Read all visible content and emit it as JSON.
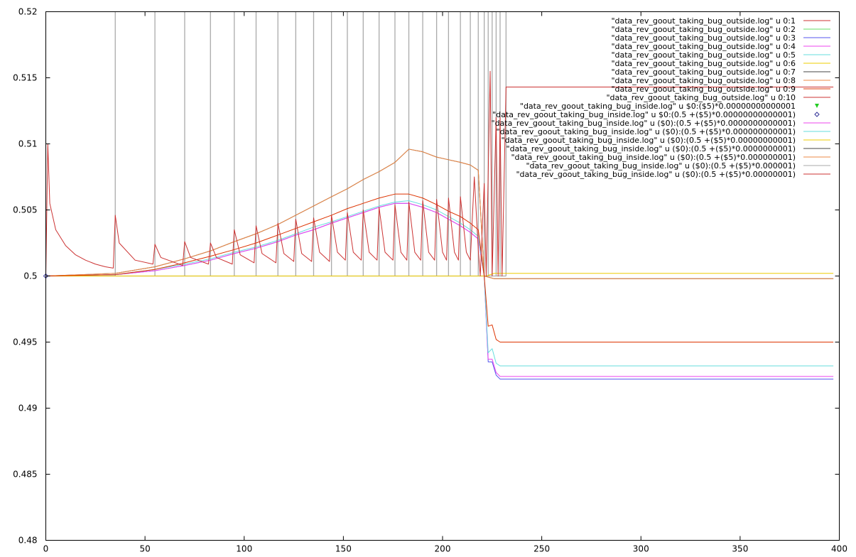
{
  "chart_data": {
    "type": "line",
    "title": "",
    "xlabel": "",
    "ylabel": "",
    "xlim": [
      0,
      400
    ],
    "ylim": [
      0.48,
      0.52
    ],
    "x_ticks": [
      "0",
      "50",
      "100",
      "150",
      "200",
      "250",
      "300",
      "350",
      "400"
    ],
    "y_ticks": [
      "0.48",
      "0.485",
      "0.49",
      "0.495",
      "0.5",
      "0.505",
      "0.51",
      "0.515",
      "0.52"
    ],
    "grid": false,
    "legend_position": "top-right",
    "spike_x": [
      35,
      55,
      70,
      83,
      95,
      106,
      117,
      126,
      135,
      144,
      152,
      160,
      168,
      176,
      183,
      190,
      197,
      203,
      209,
      214,
      218,
      221,
      223,
      225,
      227,
      229,
      232
    ],
    "series": [
      {
        "name": "\"data_rev_goout_taking_bug_outside.log\" u 0:1",
        "color": "#cc3333",
        "style": "line"
      },
      {
        "name": "\"data_rev_goout_taking_bug_outside.log\" u 0:2",
        "color": "#66dd66",
        "style": "line"
      },
      {
        "name": "\"data_rev_goout_taking_bug_outside.log\" u 0:3",
        "color": "#5555ee",
        "style": "line",
        "values": [
          [
            0,
            0.5
          ],
          [
            35,
            0.5001
          ],
          [
            55,
            0.5004
          ],
          [
            70,
            0.5008
          ],
          [
            83,
            0.5012
          ],
          [
            95,
            0.5017
          ],
          [
            106,
            0.5021
          ],
          [
            117,
            0.5026
          ],
          [
            126,
            0.5031
          ],
          [
            135,
            0.5035
          ],
          [
            144,
            0.504
          ],
          [
            152,
            0.5044
          ],
          [
            160,
            0.5048
          ],
          [
            168,
            0.5052
          ],
          [
            176,
            0.5055
          ],
          [
            183,
            0.5055
          ],
          [
            190,
            0.5052
          ],
          [
            197,
            0.5048
          ],
          [
            203,
            0.5043
          ],
          [
            209,
            0.5038
          ],
          [
            214,
            0.5033
          ],
          [
            218,
            0.5028
          ],
          [
            221,
            0.5
          ],
          [
            223,
            0.4935
          ],
          [
            225,
            0.4935
          ],
          [
            227,
            0.4925
          ],
          [
            229,
            0.4922
          ],
          [
            232,
            0.4922
          ],
          [
            300,
            0.4922
          ],
          [
            397,
            0.4922
          ]
        ]
      },
      {
        "name": "\"data_rev_goout_taking_bug_outside.log\" u 0:4",
        "color": "#ee44ee",
        "style": "line",
        "values": [
          [
            0,
            0.5
          ],
          [
            35,
            0.5001
          ],
          [
            55,
            0.5004
          ],
          [
            70,
            0.5008
          ],
          [
            83,
            0.5012
          ],
          [
            95,
            0.5017
          ],
          [
            106,
            0.5021
          ],
          [
            117,
            0.5026
          ],
          [
            126,
            0.5031
          ],
          [
            135,
            0.5035
          ],
          [
            144,
            0.504
          ],
          [
            152,
            0.5044
          ],
          [
            160,
            0.5048
          ],
          [
            168,
            0.5052
          ],
          [
            176,
            0.5055
          ],
          [
            183,
            0.5055
          ],
          [
            190,
            0.5052
          ],
          [
            197,
            0.5048
          ],
          [
            203,
            0.5043
          ],
          [
            209,
            0.5038
          ],
          [
            214,
            0.5033
          ],
          [
            218,
            0.5028
          ],
          [
            221,
            0.5
          ],
          [
            223,
            0.4937
          ],
          [
            225,
            0.4937
          ],
          [
            227,
            0.4927
          ],
          [
            229,
            0.4924
          ],
          [
            232,
            0.4924
          ],
          [
            300,
            0.4924
          ],
          [
            397,
            0.4924
          ]
        ]
      },
      {
        "name": "\"data_rev_goout_taking_bug_outside.log\" u 0:5",
        "color": "#66dddd",
        "style": "line",
        "values": [
          [
            0,
            0.5
          ],
          [
            35,
            0.5001
          ],
          [
            55,
            0.5005
          ],
          [
            70,
            0.5009
          ],
          [
            83,
            0.5013
          ],
          [
            95,
            0.5018
          ],
          [
            106,
            0.5022
          ],
          [
            117,
            0.5027
          ],
          [
            126,
            0.5032
          ],
          [
            135,
            0.5037
          ],
          [
            144,
            0.5041
          ],
          [
            152,
            0.5045
          ],
          [
            160,
            0.5049
          ],
          [
            168,
            0.5053
          ],
          [
            176,
            0.5056
          ],
          [
            183,
            0.5057
          ],
          [
            190,
            0.5054
          ],
          [
            197,
            0.505
          ],
          [
            203,
            0.5045
          ],
          [
            209,
            0.504
          ],
          [
            214,
            0.5035
          ],
          [
            218,
            0.503
          ],
          [
            221,
            0.5
          ],
          [
            223,
            0.4942
          ],
          [
            225,
            0.4945
          ],
          [
            227,
            0.4934
          ],
          [
            229,
            0.4932
          ],
          [
            232,
            0.4932
          ],
          [
            300,
            0.4932
          ],
          [
            397,
            0.4932
          ]
        ]
      },
      {
        "name": "\"data_rev_goout_taking_bug_outside.log\" u 0:6",
        "color": "#eecc00",
        "style": "line",
        "values": [
          [
            0,
            0.5
          ],
          [
            222,
            0.5
          ],
          [
            226,
            0.5002
          ],
          [
            232,
            0.5002
          ],
          [
            397,
            0.5002
          ]
        ]
      },
      {
        "name": "\"data_rev_goout_taking_bug_outside.log\" u 0:7",
        "color": "#444444",
        "style": "line",
        "values": [
          [
            0,
            0.5
          ],
          [
            35,
            0.5002
          ],
          [
            55,
            0.5007
          ],
          [
            70,
            0.5013
          ],
          [
            83,
            0.5019
          ],
          [
            95,
            0.5026
          ],
          [
            106,
            0.5032
          ],
          [
            117,
            0.5039
          ],
          [
            126,
            0.5046
          ],
          [
            135,
            0.5053
          ],
          [
            144,
            0.506
          ],
          [
            152,
            0.5066
          ],
          [
            160,
            0.5073
          ],
          [
            168,
            0.5079
          ],
          [
            176,
            0.5086
          ],
          [
            183,
            0.5096
          ],
          [
            190,
            0.5094
          ],
          [
            197,
            0.509
          ],
          [
            203,
            0.5088
          ],
          [
            209,
            0.5086
          ],
          [
            214,
            0.5084
          ],
          [
            218,
            0.508
          ],
          [
            221,
            0.5
          ],
          [
            226,
            0.4998
          ],
          [
            232,
            0.4998
          ],
          [
            397,
            0.4998
          ]
        ]
      },
      {
        "name": "\"data_rev_goout_taking_bug_outside.log\" u 0:8",
        "color": "#ee8844",
        "style": "line",
        "values": [
          [
            0,
            0.5
          ],
          [
            35,
            0.5002
          ],
          [
            55,
            0.5007
          ],
          [
            70,
            0.5013
          ],
          [
            83,
            0.5019
          ],
          [
            95,
            0.5026
          ],
          [
            106,
            0.5032
          ],
          [
            117,
            0.5039
          ],
          [
            126,
            0.5046
          ],
          [
            135,
            0.5053
          ],
          [
            144,
            0.506
          ],
          [
            152,
            0.5066
          ],
          [
            160,
            0.5073
          ],
          [
            168,
            0.5079
          ],
          [
            176,
            0.5086
          ],
          [
            183,
            0.5096
          ],
          [
            190,
            0.5094
          ],
          [
            197,
            0.509
          ],
          [
            203,
            0.5088
          ],
          [
            209,
            0.5086
          ],
          [
            214,
            0.5084
          ],
          [
            218,
            0.508
          ],
          [
            221,
            0.5
          ],
          [
            226,
            0.4998
          ],
          [
            232,
            0.4998
          ],
          [
            397,
            0.4998
          ]
        ]
      },
      {
        "name": "\"data_rev_goout_taking_bug_outside.log\" u 0:9",
        "color": "#dd3300",
        "style": "line",
        "values": [
          [
            0,
            0.5
          ],
          [
            35,
            0.5001
          ],
          [
            55,
            0.5005
          ],
          [
            70,
            0.501
          ],
          [
            83,
            0.5015
          ],
          [
            95,
            0.502
          ],
          [
            106,
            0.5025
          ],
          [
            117,
            0.5031
          ],
          [
            126,
            0.5036
          ],
          [
            135,
            0.5041
          ],
          [
            144,
            0.5046
          ],
          [
            152,
            0.5051
          ],
          [
            160,
            0.5055
          ],
          [
            168,
            0.5059
          ],
          [
            176,
            0.5062
          ],
          [
            183,
            0.5062
          ],
          [
            190,
            0.5059
          ],
          [
            197,
            0.5054
          ],
          [
            203,
            0.5049
          ],
          [
            209,
            0.5045
          ],
          [
            214,
            0.504
          ],
          [
            218,
            0.5035
          ],
          [
            221,
            0.5
          ],
          [
            223,
            0.4962
          ],
          [
            225,
            0.4963
          ],
          [
            227,
            0.4952
          ],
          [
            229,
            0.495
          ],
          [
            232,
            0.495
          ],
          [
            300,
            0.495
          ],
          [
            397,
            0.495
          ]
        ]
      },
      {
        "name": "\"data_rev_goout_taking_bug_outside.log\" u 0:10",
        "color": "#cc3333",
        "style": "line",
        "values": [
          [
            0,
            0.5
          ],
          [
            1,
            0.51
          ],
          [
            2,
            0.5055
          ],
          [
            5,
            0.5035
          ],
          [
            10,
            0.5023
          ],
          [
            15,
            0.5016
          ],
          [
            20,
            0.5012
          ],
          [
            25,
            0.5009
          ],
          [
            30,
            0.5007
          ],
          [
            34,
            0.5006
          ],
          [
            35,
            0.5046
          ],
          [
            37,
            0.5025
          ],
          [
            45,
            0.5012
          ],
          [
            54,
            0.5009
          ],
          [
            55,
            0.5024
          ],
          [
            58,
            0.5014
          ],
          [
            69,
            0.5008
          ],
          [
            70,
            0.5026
          ],
          [
            73,
            0.5014
          ],
          [
            82,
            0.5009
          ],
          [
            83,
            0.5025
          ],
          [
            86,
            0.5014
          ],
          [
            94,
            0.5009
          ],
          [
            95,
            0.5035
          ],
          [
            98,
            0.5016
          ],
          [
            105,
            0.501
          ],
          [
            106,
            0.5038
          ],
          [
            109,
            0.5017
          ],
          [
            116,
            0.501
          ],
          [
            117,
            0.504
          ],
          [
            120,
            0.5017
          ],
          [
            125,
            0.5011
          ],
          [
            126,
            0.5043
          ],
          [
            129,
            0.5017
          ],
          [
            134,
            0.5011
          ],
          [
            135,
            0.5044
          ],
          [
            138,
            0.5018
          ],
          [
            143,
            0.5011
          ],
          [
            144,
            0.5046
          ],
          [
            147,
            0.5018
          ],
          [
            151,
            0.5012
          ],
          [
            152,
            0.5048
          ],
          [
            155,
            0.5018
          ],
          [
            159,
            0.5012
          ],
          [
            160,
            0.505
          ],
          [
            163,
            0.5018
          ],
          [
            167,
            0.5012
          ],
          [
            168,
            0.5052
          ],
          [
            171,
            0.5018
          ],
          [
            175,
            0.5012
          ],
          [
            176,
            0.5054
          ],
          [
            179,
            0.5018
          ],
          [
            182,
            0.5012
          ],
          [
            183,
            0.5056
          ],
          [
            186,
            0.5018
          ],
          [
            189,
            0.5012
          ],
          [
            190,
            0.5057
          ],
          [
            193,
            0.5018
          ],
          [
            196,
            0.5012
          ],
          [
            197,
            0.5058
          ],
          [
            200,
            0.5018
          ],
          [
            202,
            0.5012
          ],
          [
            203,
            0.5059
          ],
          [
            206,
            0.5018
          ],
          [
            208,
            0.5012
          ],
          [
            209,
            0.506
          ],
          [
            212,
            0.5018
          ],
          [
            214,
            0.5012
          ],
          [
            216,
            0.5075
          ],
          [
            218,
            0.502
          ],
          [
            219,
            0.5
          ],
          [
            221,
            0.507
          ],
          [
            222,
            0.5
          ],
          [
            224,
            0.5155
          ],
          [
            225,
            0.5
          ],
          [
            227,
            0.512
          ],
          [
            228,
            0.5
          ],
          [
            229,
            0.512
          ],
          [
            230,
            0.5
          ],
          [
            232,
            0.5143
          ],
          [
            300,
            0.5143
          ],
          [
            397,
            0.5143
          ]
        ]
      },
      {
        "name": "\"data_rev_goout_taking_bug_inside.log\" u $0:($5)*0.00000000000001",
        "color": "#22cc22",
        "style": "triangle-down"
      },
      {
        "name": "\"data_rev_goout_taking_bug_inside.log\" u $0:(0.5 +($5)*0.00000000000001)",
        "color": "#333399",
        "style": "diamond",
        "values": [
          [
            0,
            0.5
          ]
        ]
      },
      {
        "name": "\"data_rev_goout_taking_bug_inside.log\" u ($0):(0.5 +($5)*0.0000000000001)",
        "color": "#ee44ee",
        "style": "line"
      },
      {
        "name": "\"data_rev_goout_taking_bug_inside.log\" u ($0):(0.5 +($5)*0.000000000001)",
        "color": "#66dddd",
        "style": "line"
      },
      {
        "name": "\"data_rev_goout_taking_bug_inside.log\" u ($0):(0.5 +($5)*0.00000000001)",
        "color": "#eecc00",
        "style": "line"
      },
      {
        "name": "\"data_rev_goout_taking_bug_inside.log\" u ($0):(0.5 +($5)*0.0000000001)",
        "color": "#444444",
        "style": "line"
      },
      {
        "name": "\"data_rev_goout_taking_bug_inside.log\" u ($0):(0.5 +($5)*0.000000001)",
        "color": "#ee8844",
        "style": "line"
      },
      {
        "name": "\"data_rev_goout_taking_bug_inside.log\" u ($0):(0.5 +($5)*0.000001)",
        "color": "#aaaaaa",
        "style": "line"
      },
      {
        "name": "\"data_rev_goout_taking_bug_inside.log\" u ($0):(0.5 +($5)*0.00000001)",
        "color": "#cc3333",
        "style": "line"
      }
    ]
  }
}
